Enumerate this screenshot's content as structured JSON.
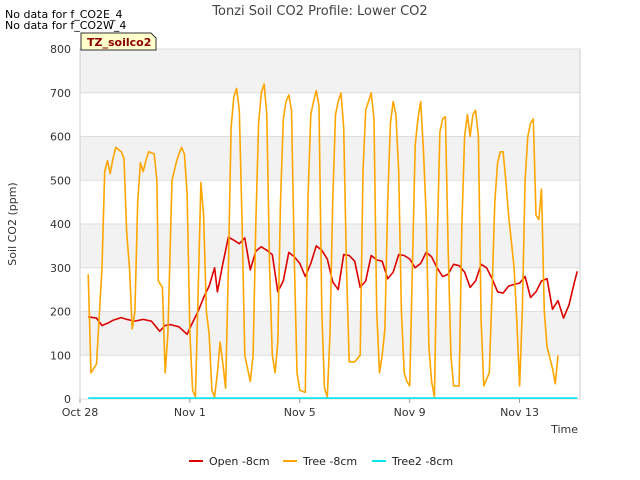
{
  "notes": [
    "No data for f_CO2E_4",
    "No data for f_CO2W_4"
  ],
  "badge": "TZ_soilco2",
  "chart_data": {
    "type": "line",
    "title": "Tonzi Soil CO2 Profile: Lower CO2",
    "xlabel": "Time",
    "ylabel": "Soil CO2 (ppm)",
    "ylim": [
      0,
      800
    ],
    "yticks": [
      0,
      100,
      200,
      300,
      400,
      500,
      600,
      700,
      800
    ],
    "xlim": [
      0,
      18.2
    ],
    "xticks": [
      {
        "day": 0,
        "label": "Oct 28"
      },
      {
        "day": 4,
        "label": "Nov 1"
      },
      {
        "day": 8,
        "label": "Nov 5"
      },
      {
        "day": 12,
        "label": "Nov 9"
      },
      {
        "day": 16,
        "label": "Nov 13"
      }
    ],
    "series": [
      {
        "name": "Open -8cm",
        "color": "#dd0000",
        "points": [
          [
            0.3,
            188
          ],
          [
            0.6,
            185
          ],
          [
            0.8,
            168
          ],
          [
            1.0,
            173
          ],
          [
            1.2,
            180
          ],
          [
            1.5,
            186
          ],
          [
            1.7,
            182
          ],
          [
            2.0,
            178
          ],
          [
            2.3,
            182
          ],
          [
            2.6,
            178
          ],
          [
            2.9,
            155
          ],
          [
            3.1,
            168
          ],
          [
            3.3,
            170
          ],
          [
            3.6,
            165
          ],
          [
            3.9,
            148
          ],
          [
            4.1,
            175
          ],
          [
            4.3,
            200
          ],
          [
            4.5,
            232
          ],
          [
            4.7,
            258
          ],
          [
            4.9,
            300
          ],
          [
            5.0,
            245
          ],
          [
            5.2,
            310
          ],
          [
            5.4,
            370
          ],
          [
            5.6,
            363
          ],
          [
            5.8,
            355
          ],
          [
            6.0,
            368
          ],
          [
            6.2,
            295
          ],
          [
            6.4,
            338
          ],
          [
            6.6,
            348
          ],
          [
            6.8,
            340
          ],
          [
            7.0,
            330
          ],
          [
            7.2,
            245
          ],
          [
            7.4,
            270
          ],
          [
            7.6,
            335
          ],
          [
            7.8,
            325
          ],
          [
            8.0,
            310
          ],
          [
            8.2,
            280
          ],
          [
            8.4,
            310
          ],
          [
            8.6,
            350
          ],
          [
            8.8,
            340
          ],
          [
            9.0,
            320
          ],
          [
            9.2,
            268
          ],
          [
            9.4,
            250
          ],
          [
            9.6,
            330
          ],
          [
            9.8,
            328
          ],
          [
            10.0,
            315
          ],
          [
            10.2,
            255
          ],
          [
            10.4,
            270
          ],
          [
            10.6,
            328
          ],
          [
            10.8,
            318
          ],
          [
            11.0,
            315
          ],
          [
            11.2,
            275
          ],
          [
            11.4,
            290
          ],
          [
            11.6,
            330
          ],
          [
            11.8,
            328
          ],
          [
            12.0,
            320
          ],
          [
            12.2,
            300
          ],
          [
            12.4,
            310
          ],
          [
            12.6,
            335
          ],
          [
            12.8,
            325
          ],
          [
            13.0,
            300
          ],
          [
            13.2,
            280
          ],
          [
            13.4,
            285
          ],
          [
            13.6,
            308
          ],
          [
            13.8,
            305
          ],
          [
            14.0,
            290
          ],
          [
            14.2,
            255
          ],
          [
            14.4,
            270
          ],
          [
            14.6,
            308
          ],
          [
            14.8,
            300
          ],
          [
            15.0,
            275
          ],
          [
            15.2,
            245
          ],
          [
            15.4,
            242
          ],
          [
            15.6,
            258
          ],
          [
            15.8,
            262
          ],
          [
            16.0,
            265
          ],
          [
            16.2,
            280
          ],
          [
            16.4,
            232
          ],
          [
            16.6,
            245
          ],
          [
            16.8,
            270
          ],
          [
            17.0,
            275
          ],
          [
            17.2,
            205
          ],
          [
            17.4,
            225
          ],
          [
            17.6,
            185
          ],
          [
            17.8,
            215
          ],
          [
            18.0,
            268
          ],
          [
            18.1,
            292
          ]
        ]
      },
      {
        "name": "Tree -8cm",
        "color": "#ffa500",
        "points": [
          [
            0.3,
            285
          ],
          [
            0.4,
            60
          ],
          [
            0.6,
            80
          ],
          [
            0.8,
            300
          ],
          [
            0.9,
            520
          ],
          [
            1.0,
            545
          ],
          [
            1.1,
            515
          ],
          [
            1.2,
            550
          ],
          [
            1.3,
            575
          ],
          [
            1.5,
            565
          ],
          [
            1.6,
            550
          ],
          [
            1.7,
            380
          ],
          [
            1.8,
            300
          ],
          [
            1.9,
            160
          ],
          [
            2.0,
            200
          ],
          [
            2.1,
            450
          ],
          [
            2.2,
            540
          ],
          [
            2.3,
            520
          ],
          [
            2.4,
            545
          ],
          [
            2.5,
            565
          ],
          [
            2.7,
            560
          ],
          [
            2.8,
            500
          ],
          [
            2.85,
            270
          ],
          [
            3.0,
            255
          ],
          [
            3.1,
            60
          ],
          [
            3.2,
            150
          ],
          [
            3.35,
            500
          ],
          [
            3.5,
            540
          ],
          [
            3.6,
            560
          ],
          [
            3.7,
            575
          ],
          [
            3.8,
            560
          ],
          [
            3.9,
            470
          ],
          [
            4.0,
            150
          ],
          [
            4.1,
            20
          ],
          [
            4.2,
            5
          ],
          [
            4.3,
            240
          ],
          [
            4.4,
            495
          ],
          [
            4.5,
            420
          ],
          [
            4.6,
            200
          ],
          [
            4.7,
            150
          ],
          [
            4.8,
            20
          ],
          [
            4.9,
            5
          ],
          [
            5.0,
            60
          ],
          [
            5.1,
            130
          ],
          [
            5.2,
            80
          ],
          [
            5.3,
            25
          ],
          [
            5.4,
            300
          ],
          [
            5.5,
            620
          ],
          [
            5.6,
            690
          ],
          [
            5.7,
            710
          ],
          [
            5.8,
            660
          ],
          [
            5.9,
            400
          ],
          [
            6.0,
            100
          ],
          [
            6.1,
            70
          ],
          [
            6.2,
            40
          ],
          [
            6.3,
            100
          ],
          [
            6.4,
            400
          ],
          [
            6.5,
            630
          ],
          [
            6.6,
            700
          ],
          [
            6.7,
            720
          ],
          [
            6.8,
            650
          ],
          [
            6.9,
            300
          ],
          [
            7.0,
            100
          ],
          [
            7.1,
            60
          ],
          [
            7.2,
            130
          ],
          [
            7.3,
            450
          ],
          [
            7.4,
            640
          ],
          [
            7.5,
            680
          ],
          [
            7.6,
            695
          ],
          [
            7.7,
            660
          ],
          [
            7.8,
            320
          ],
          [
            7.9,
            60
          ],
          [
            8.0,
            20
          ],
          [
            8.2,
            15
          ],
          [
            8.3,
            460
          ],
          [
            8.4,
            650
          ],
          [
            8.5,
            680
          ],
          [
            8.6,
            705
          ],
          [
            8.7,
            670
          ],
          [
            8.8,
            200
          ],
          [
            8.9,
            25
          ],
          [
            9.0,
            5
          ],
          [
            9.1,
            150
          ],
          [
            9.2,
            450
          ],
          [
            9.3,
            650
          ],
          [
            9.4,
            680
          ],
          [
            9.5,
            700
          ],
          [
            9.6,
            620
          ],
          [
            9.7,
            300
          ],
          [
            9.8,
            85
          ],
          [
            10.0,
            85
          ],
          [
            10.2,
            100
          ],
          [
            10.3,
            520
          ],
          [
            10.4,
            660
          ],
          [
            10.5,
            680
          ],
          [
            10.6,
            700
          ],
          [
            10.7,
            640
          ],
          [
            10.8,
            200
          ],
          [
            10.9,
            60
          ],
          [
            11.0,
            100
          ],
          [
            11.1,
            160
          ],
          [
            11.2,
            450
          ],
          [
            11.3,
            630
          ],
          [
            11.4,
            680
          ],
          [
            11.5,
            650
          ],
          [
            11.6,
            520
          ],
          [
            11.7,
            200
          ],
          [
            11.8,
            60
          ],
          [
            11.9,
            40
          ],
          [
            12.0,
            30
          ],
          [
            12.1,
            300
          ],
          [
            12.2,
            580
          ],
          [
            12.3,
            640
          ],
          [
            12.4,
            680
          ],
          [
            12.5,
            570
          ],
          [
            12.6,
            420
          ],
          [
            12.7,
            120
          ],
          [
            12.8,
            40
          ],
          [
            12.9,
            5
          ],
          [
            13.0,
            350
          ],
          [
            13.1,
            610
          ],
          [
            13.2,
            640
          ],
          [
            13.3,
            645
          ],
          [
            13.4,
            350
          ],
          [
            13.5,
            100
          ],
          [
            13.6,
            30
          ],
          [
            13.8,
            30
          ],
          [
            13.9,
            400
          ],
          [
            14.0,
            600
          ],
          [
            14.1,
            650
          ],
          [
            14.2,
            600
          ],
          [
            14.3,
            650
          ],
          [
            14.4,
            660
          ],
          [
            14.5,
            600
          ],
          [
            14.6,
            180
          ],
          [
            14.7,
            30
          ],
          [
            14.9,
            60
          ],
          [
            15.0,
            250
          ],
          [
            15.1,
            450
          ],
          [
            15.2,
            540
          ],
          [
            15.3,
            565
          ],
          [
            15.4,
            565
          ],
          [
            15.5,
            500
          ],
          [
            15.6,
            420
          ],
          [
            15.8,
            300
          ],
          [
            15.9,
            180
          ],
          [
            16.0,
            30
          ],
          [
            16.1,
            200
          ],
          [
            16.2,
            500
          ],
          [
            16.3,
            600
          ],
          [
            16.4,
            630
          ],
          [
            16.5,
            640
          ],
          [
            16.6,
            420
          ],
          [
            16.7,
            410
          ],
          [
            16.8,
            480
          ],
          [
            16.9,
            200
          ],
          [
            17.0,
            120
          ],
          [
            17.2,
            70
          ],
          [
            17.3,
            35
          ],
          [
            17.4,
            100
          ]
        ]
      },
      {
        "name": "Tree2 -8cm",
        "color": "#00e5ee",
        "points": [
          [
            0.3,
            2
          ],
          [
            18.1,
            2
          ]
        ]
      }
    ],
    "legend_position": "bottom-center"
  }
}
